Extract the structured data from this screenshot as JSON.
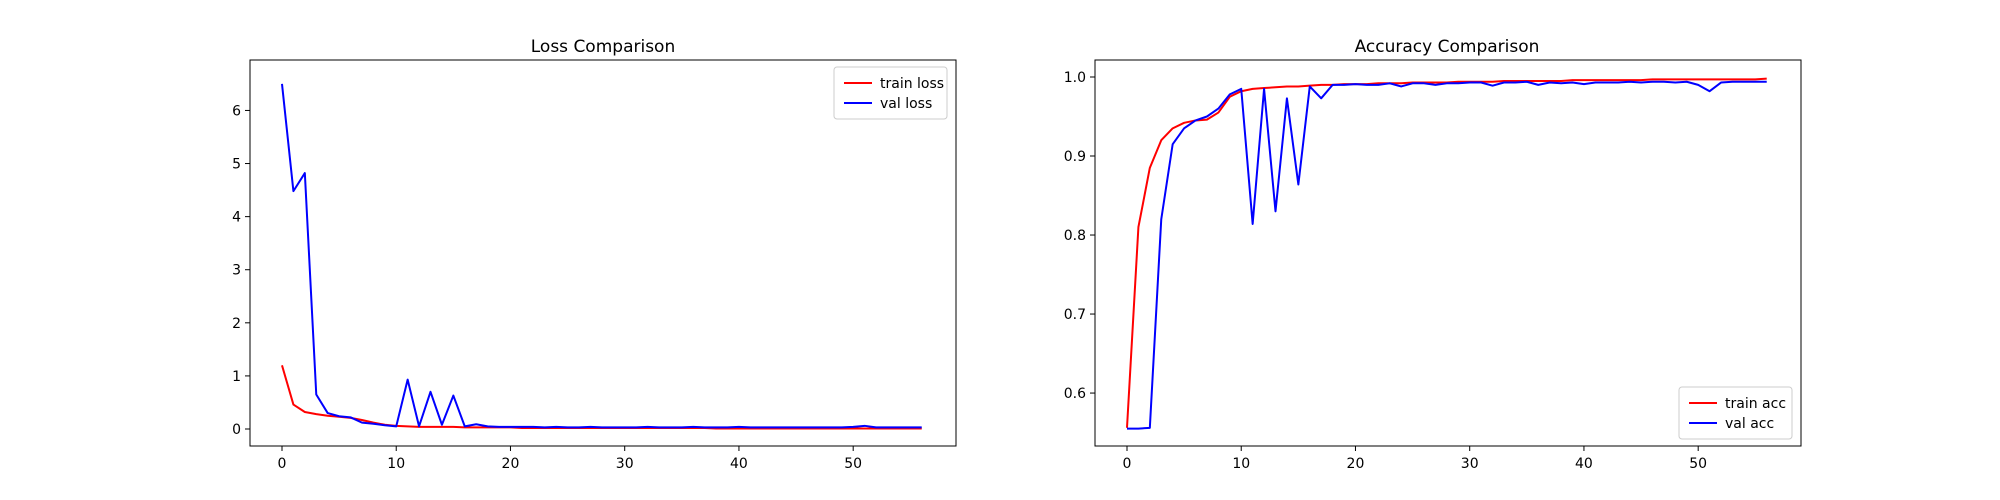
{
  "chart_data": [
    {
      "type": "line",
      "title": "Loss Comparison",
      "xlabel": "",
      "ylabel": "",
      "xlim": [
        -2.8,
        59
      ],
      "ylim": [
        -0.32,
        6.95
      ],
      "xticks": [
        0,
        10,
        20,
        30,
        40,
        50
      ],
      "yticks": [
        0,
        1,
        2,
        3,
        4,
        5,
        6
      ],
      "grid": false,
      "legend_position": "top-right",
      "series": [
        {
          "name": "train loss",
          "color": "#ff0000",
          "x": [
            0,
            1,
            2,
            3,
            4,
            5,
            6,
            7,
            8,
            9,
            10,
            11,
            12,
            13,
            14,
            15,
            16,
            17,
            18,
            19,
            20,
            21,
            22,
            23,
            24,
            25,
            26,
            27,
            28,
            29,
            30,
            31,
            32,
            33,
            34,
            35,
            36,
            37,
            38,
            39,
            40,
            41,
            42,
            43,
            44,
            45,
            46,
            47,
            48,
            49,
            50,
            51,
            52,
            53,
            54,
            55,
            56
          ],
          "values": [
            1.2,
            0.46,
            0.32,
            0.28,
            0.25,
            0.23,
            0.21,
            0.17,
            0.12,
            0.08,
            0.06,
            0.05,
            0.04,
            0.04,
            0.04,
            0.04,
            0.03,
            0.03,
            0.03,
            0.03,
            0.03,
            0.02,
            0.02,
            0.02,
            0.02,
            0.02,
            0.02,
            0.02,
            0.02,
            0.02,
            0.02,
            0.02,
            0.02,
            0.02,
            0.02,
            0.02,
            0.02,
            0.02,
            0.01,
            0.01,
            0.01,
            0.01,
            0.01,
            0.01,
            0.01,
            0.01,
            0.01,
            0.01,
            0.01,
            0.01,
            0.01,
            0.01,
            0.01,
            0.01,
            0.01,
            0.01,
            0.01
          ]
        },
        {
          "name": "val loss",
          "color": "#0000ff",
          "x": [
            0,
            1,
            2,
            3,
            4,
            5,
            6,
            7,
            8,
            9,
            10,
            11,
            12,
            13,
            14,
            15,
            16,
            17,
            18,
            19,
            20,
            21,
            22,
            23,
            24,
            25,
            26,
            27,
            28,
            29,
            30,
            31,
            32,
            33,
            34,
            35,
            36,
            37,
            38,
            39,
            40,
            41,
            42,
            43,
            44,
            45,
            46,
            47,
            48,
            49,
            50,
            51,
            52,
            53,
            54,
            55,
            56
          ],
          "values": [
            6.5,
            4.48,
            4.82,
            0.65,
            0.3,
            0.24,
            0.22,
            0.12,
            0.1,
            0.07,
            0.05,
            0.93,
            0.05,
            0.7,
            0.08,
            0.63,
            0.05,
            0.09,
            0.05,
            0.04,
            0.04,
            0.04,
            0.04,
            0.03,
            0.04,
            0.03,
            0.03,
            0.04,
            0.03,
            0.03,
            0.03,
            0.03,
            0.04,
            0.03,
            0.03,
            0.03,
            0.04,
            0.03,
            0.03,
            0.03,
            0.04,
            0.03,
            0.03,
            0.03,
            0.03,
            0.03,
            0.03,
            0.03,
            0.03,
            0.03,
            0.04,
            0.06,
            0.03,
            0.03,
            0.03,
            0.03,
            0.03
          ]
        }
      ]
    },
    {
      "type": "line",
      "title": "Accuracy Comparison",
      "xlabel": "",
      "ylabel": "",
      "xlim": [
        -2.8,
        59
      ],
      "ylim": [
        0.533,
        1.0215
      ],
      "xticks": [
        0,
        10,
        20,
        30,
        40,
        50
      ],
      "yticks": [
        0.6,
        0.7,
        0.8,
        0.9,
        1.0
      ],
      "ytick_labels": [
        "0.6",
        "0.7",
        "0.8",
        "0.9",
        "1.0"
      ],
      "grid": false,
      "legend_position": "lower-right",
      "series": [
        {
          "name": "train acc",
          "color": "#ff0000",
          "x": [
            0,
            1,
            2,
            3,
            4,
            5,
            6,
            7,
            8,
            9,
            10,
            11,
            12,
            13,
            14,
            15,
            16,
            17,
            18,
            19,
            20,
            21,
            22,
            23,
            24,
            25,
            26,
            27,
            28,
            29,
            30,
            31,
            32,
            33,
            34,
            35,
            36,
            37,
            38,
            39,
            40,
            41,
            42,
            43,
            44,
            45,
            46,
            47,
            48,
            49,
            50,
            51,
            52,
            53,
            54,
            55,
            56
          ],
          "values": [
            0.556,
            0.81,
            0.885,
            0.92,
            0.935,
            0.942,
            0.945,
            0.946,
            0.955,
            0.975,
            0.982,
            0.985,
            0.986,
            0.987,
            0.988,
            0.988,
            0.989,
            0.99,
            0.99,
            0.991,
            0.991,
            0.991,
            0.992,
            0.992,
            0.992,
            0.993,
            0.993,
            0.993,
            0.993,
            0.994,
            0.994,
            0.994,
            0.994,
            0.995,
            0.995,
            0.995,
            0.995,
            0.995,
            0.995,
            0.996,
            0.996,
            0.996,
            0.996,
            0.996,
            0.996,
            0.996,
            0.997,
            0.997,
            0.997,
            0.997,
            0.997,
            0.997,
            0.997,
            0.997,
            0.997,
            0.997,
            0.998
          ]
        },
        {
          "name": "val acc",
          "color": "#0000ff",
          "x": [
            0,
            1,
            2,
            3,
            4,
            5,
            6,
            7,
            8,
            9,
            10,
            11,
            12,
            13,
            14,
            15,
            16,
            17,
            18,
            19,
            20,
            21,
            22,
            23,
            24,
            25,
            26,
            27,
            28,
            29,
            30,
            31,
            32,
            33,
            34,
            35,
            36,
            37,
            38,
            39,
            40,
            41,
            42,
            43,
            44,
            45,
            46,
            47,
            48,
            49,
            50,
            51,
            52,
            53,
            54,
            55,
            56
          ],
          "values": [
            0.555,
            0.555,
            0.556,
            0.82,
            0.915,
            0.935,
            0.945,
            0.95,
            0.96,
            0.978,
            0.985,
            0.814,
            0.985,
            0.83,
            0.973,
            0.864,
            0.988,
            0.973,
            0.99,
            0.99,
            0.991,
            0.99,
            0.99,
            0.992,
            0.988,
            0.992,
            0.992,
            0.99,
            0.992,
            0.992,
            0.993,
            0.993,
            0.989,
            0.993,
            0.993,
            0.994,
            0.99,
            0.993,
            0.992,
            0.993,
            0.991,
            0.993,
            0.993,
            0.993,
            0.994,
            0.993,
            0.994,
            0.994,
            0.993,
            0.994,
            0.99,
            0.982,
            0.993,
            0.994,
            0.994,
            0.994,
            0.994
          ]
        }
      ]
    }
  ]
}
